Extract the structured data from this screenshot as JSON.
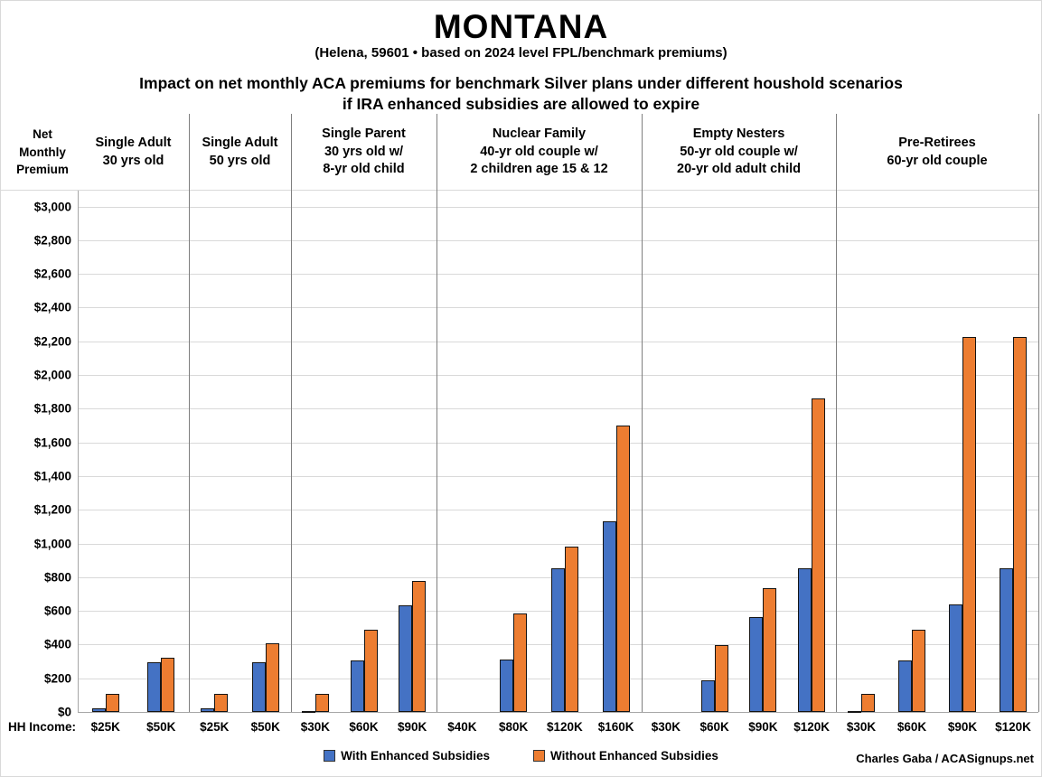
{
  "header": {
    "title": "MONTANA",
    "subtitle": "(Helena, 59601 • based on 2024 level FPL/benchmark premiums)",
    "chart_title_line1": "Impact on net monthly ACA premiums for benchmark Silver plans under different houshold scenarios",
    "chart_title_line2": "if IRA enhanced subsidies are allowed to expire"
  },
  "axis_corner_label_lines": [
    "Net",
    "Monthly",
    "Premium"
  ],
  "income_row_prefix": "HH Income:",
  "credit": "Charles Gaba / ACASignups.net",
  "chart_data": {
    "type": "bar",
    "title": "Impact on net monthly ACA premiums for benchmark Silver plans under different houshold scenarios if IRA enhanced subsidies are allowed to expire",
    "ylabel": "Net Monthly Premium",
    "xlabel": "HH Income",
    "ylim": [
      0,
      3000
    ],
    "ytick_step": 200,
    "ytick_labels": [
      "$0",
      "$200",
      "$400",
      "$600",
      "$800",
      "$1,000",
      "$1,200",
      "$1,400",
      "$1,600",
      "$1,800",
      "$2,000",
      "$2,200",
      "$2,400",
      "$2,600",
      "$2,800",
      "$3,000"
    ],
    "grid": true,
    "legend_position": "bottom",
    "series": [
      {
        "key": "with",
        "name": "With Enhanced Subsidies",
        "color": "#4472C4"
      },
      {
        "key": "without",
        "name": "Without Enhanced Subsidies",
        "color": "#ED7D31"
      }
    ],
    "groups": [
      {
        "scenario_lines": [
          "Single Adult",
          "30 yrs old"
        ],
        "incomes": [
          "$25K",
          "$50K"
        ],
        "values": {
          "with": [
            20,
            295
          ],
          "without": [
            105,
            320
          ]
        }
      },
      {
        "scenario_lines": [
          "Single Adult",
          "50 yrs old"
        ],
        "incomes": [
          "$25K",
          "$50K"
        ],
        "values": {
          "with": [
            20,
            295
          ],
          "without": [
            105,
            405
          ]
        }
      },
      {
        "scenario_lines": [
          "Single Parent",
          "30 yrs old w/",
          "8-yr old child"
        ],
        "incomes": [
          "$30K",
          "$60K",
          "$90K"
        ],
        "values": {
          "with": [
            5,
            305,
            635
          ],
          "without": [
            105,
            490,
            775
          ]
        }
      },
      {
        "scenario_lines": [
          "Nuclear Family",
          "40-yr old couple w/",
          "2 children age 15 & 12"
        ],
        "incomes": [
          "$40K",
          "$80K",
          "$120K",
          "$160K"
        ],
        "values": {
          "with": [
            0,
            310,
            850,
            1130
          ],
          "without": [
            0,
            585,
            980,
            1700
          ]
        }
      },
      {
        "scenario_lines": [
          "Empty Nesters",
          "50-yr old couple w/",
          "20-yr old adult child"
        ],
        "incomes": [
          "$30K",
          "$60K",
          "$90K",
          "$120K"
        ],
        "values": {
          "with": [
            0,
            185,
            565,
            850
          ],
          "without": [
            0,
            395,
            735,
            1860
          ]
        }
      },
      {
        "scenario_lines": [
          "Pre-Retirees",
          "60-yr old couple"
        ],
        "incomes": [
          "$30K",
          "$60K",
          "$90K",
          "$120K"
        ],
        "values": {
          "with": [
            5,
            305,
            640,
            850
          ],
          "without": [
            105,
            490,
            2225,
            2225
          ]
        }
      }
    ]
  }
}
